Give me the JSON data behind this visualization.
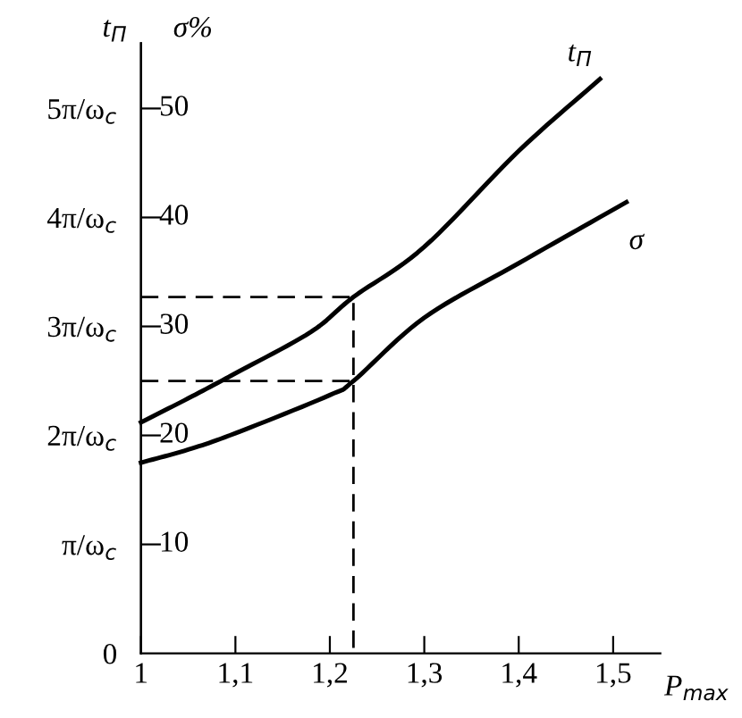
{
  "chart_data": {
    "type": "line",
    "xlabel": "P$_{max}$",
    "ylabel": "σ%",
    "y2label": "t$_{П}$",
    "xlim": [
      1,
      1.55
    ],
    "ylim": [
      0,
      56
    ],
    "y2lim": [
      0,
      5.6
    ],
    "xticks": [
      1,
      {
        "value": 1.1,
        "label": "1,1"
      },
      {
        "value": 1.2,
        "label": "1,2"
      },
      {
        "value": 1.3,
        "label": "1,3"
      },
      {
        "value": 1.4,
        "label": "1,4"
      },
      {
        "value": 1.5,
        "label": "1,5"
      }
    ],
    "yticks": [
      10,
      20,
      30,
      40,
      50
    ],
    "y2ticks": [
      0,
      {
        "value": 1,
        "label": "π/ω$_{c}$"
      },
      {
        "value": 2,
        "label": "2π/ω$_{c}$"
      },
      {
        "value": 3,
        "label": "3π/ω$_{c}$"
      },
      {
        "value": 4,
        "label": "4π/ω$_{c}$"
      },
      {
        "value": 5,
        "label": "5π/ω$_{c}$"
      }
    ],
    "series": [
      {
        "color": "#000000",
        "axis": "y2",
        "x": [
          1,
          1.05,
          1.1,
          1.18,
          1.225,
          1.3,
          1.4,
          1.486
        ],
        "values": [
          2.12,
          2.34,
          2.57,
          2.95,
          3.27,
          3.73,
          4.61,
          5.27
        ]
      },
      {
        "color": "#000000",
        "x": [
          1,
          1.05,
          1.1,
          1.2,
          1.225,
          1.3,
          1.4,
          1.514
        ],
        "values": [
          17.5,
          18.7,
          20.2,
          23.7,
          25,
          30.8,
          35.8,
          41.4
        ]
      },
      {
        "color": "#000000",
        "line_style": "dashed",
        "x": [
          1,
          1.225,
          1.225
        ],
        "values": [
          32.7,
          32.7,
          0
        ]
      },
      {
        "color": "#000000",
        "line_style": "dashed",
        "x": [
          1,
          1.225
        ],
        "values": [
          25,
          25
        ]
      }
    ],
    "annotations": [
      "t$_{П}$",
      "σ"
    ],
    "grid": false,
    "legend": false,
    "marker": "none"
  }
}
